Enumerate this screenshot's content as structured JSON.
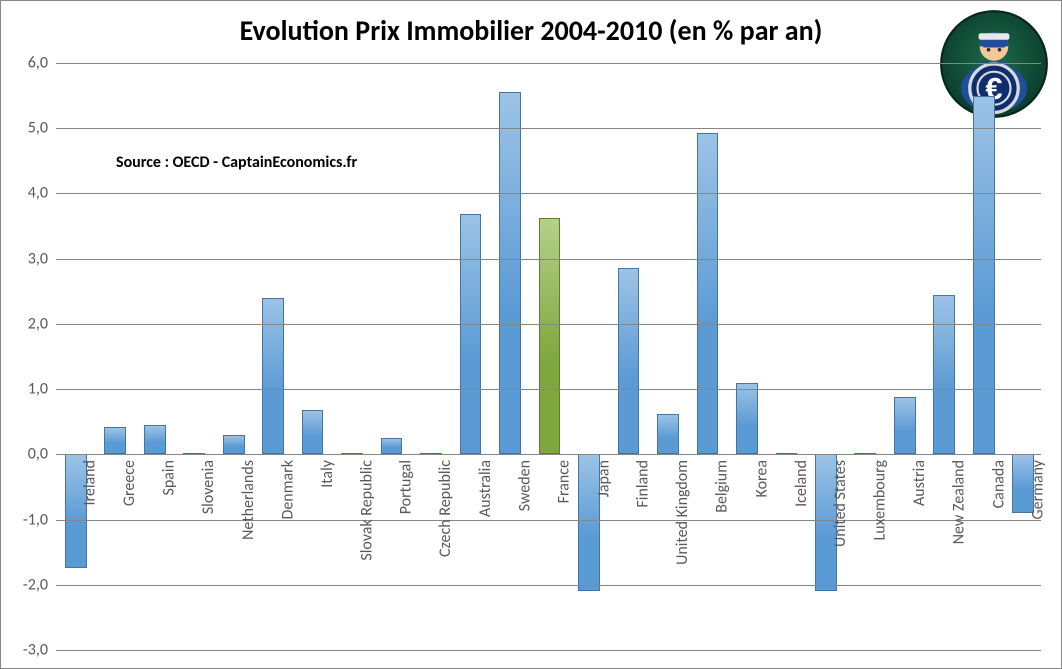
{
  "chart": {
    "type": "bar",
    "title": "Evolution Prix Immobilier 2004-2010 (en % par an)",
    "title_fontsize": 28,
    "title_fontweight": "bold",
    "source_label": "Source : OECD - CaptainEconomics.fr",
    "source_fontsize": 16,
    "source_fontweight": "bold",
    "categories": [
      "Ireland",
      "Greece",
      "Spain",
      "Slovenia",
      "Netherlands",
      "Denmark",
      "Italy",
      "Slovak Republic",
      "Portugal",
      "Czech Republic",
      "Australia",
      "Sweden",
      "France",
      "Japan",
      "Finland",
      "United Kingdom",
      "Belgium",
      "Korea",
      "Iceland",
      "United States",
      "Luxembourg",
      "Austria",
      "New Zealand",
      "Canada",
      "Germany"
    ],
    "values": [
      -1.75,
      0.42,
      0.45,
      0.02,
      0.3,
      2.4,
      0.68,
      0.02,
      0.25,
      0.02,
      3.68,
      5.55,
      3.62,
      -2.1,
      2.85,
      0.62,
      4.92,
      1.1,
      0.02,
      -2.1,
      0.02,
      0.88,
      2.45,
      5.5,
      -0.9
    ],
    "bar_colors": [
      "#5b9bd5",
      "#5b9bd5",
      "#5b9bd5",
      "#5b9bd5",
      "#5b9bd5",
      "#5b9bd5",
      "#5b9bd5",
      "#5b9bd5",
      "#5b9bd5",
      "#5b9bd5",
      "#5b9bd5",
      "#5b9bd5",
      "#7fa73f",
      "#5b9bd5",
      "#5b9bd5",
      "#5b9bd5",
      "#5b9bd5",
      "#5b9bd5",
      "#5b9bd5",
      "#5b9bd5",
      "#5b9bd5",
      "#5b9bd5",
      "#5b9bd5",
      "#5b9bd5",
      "#5b9bd5"
    ],
    "ylim": [
      -3.0,
      6.0
    ],
    "ytick_step": 1.0,
    "decimal_separator": ",",
    "grid_color": "#868686",
    "axis_line_color": "#868686",
    "background_color": "#ffffff",
    "label_fontsize": 16,
    "label_color": "#595959",
    "bar_width_ratio": 0.55,
    "bar_gradient_light": "#9cc3e6",
    "bar_border_darken": 0.75,
    "highlight_gradient_light": "#b5d08a",
    "logo": {
      "bg_outer": "#0b3d2e",
      "bg_inner": "#1d6b4a",
      "body": "#1f4e9b",
      "skin": "#f2c79a",
      "shield_bg": "#0f2e6e",
      "shield_ring": "#d9d9d9",
      "euro": "#ffffff"
    }
  }
}
